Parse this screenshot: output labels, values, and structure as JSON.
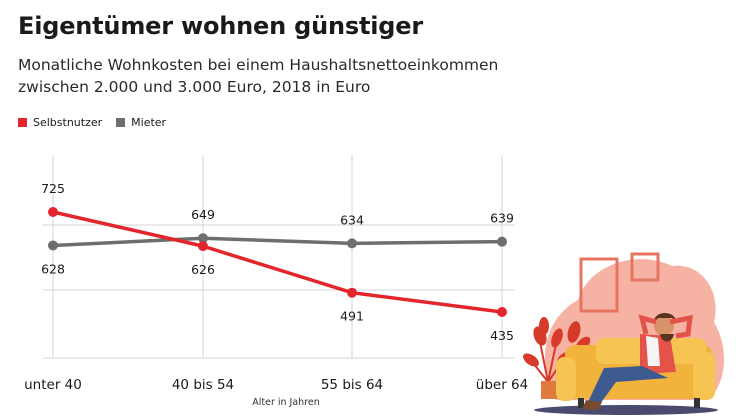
{
  "title": "Eigentümer wohnen günstiger",
  "subtitle": "Monatliche Wohnkosten bei einem Haushaltsnettoeinkommen zwischen 2.000 und 3.000 Euro, 2018 in Euro",
  "chart_data": {
    "type": "line",
    "categories": [
      "unter 40",
      "40 bis 54",
      "55 bis 64",
      "über 64"
    ],
    "series": [
      {
        "name": "Selbstnutzer",
        "values": [
          725,
          626,
          491,
          435
        ],
        "color": "#e3262c"
      },
      {
        "name": "Mieter",
        "values": [
          628,
          649,
          634,
          639
        ],
        "color": "#6e6e6e"
      }
    ],
    "xlabel": "Alter in Jahren",
    "ylabel": "",
    "ylim": [
      400,
      760
    ],
    "grid": true,
    "legend": "top-left"
  }
}
